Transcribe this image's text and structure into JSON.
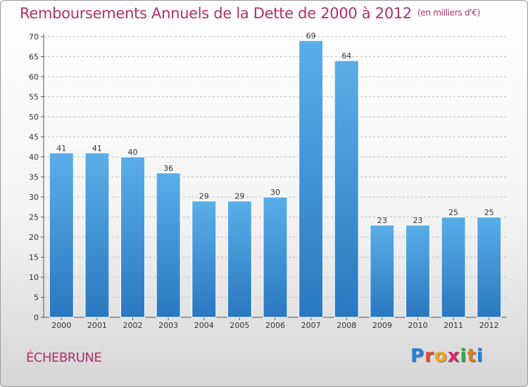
{
  "header": {
    "title": "Remboursements Annuels de la Dette de 2000 à 2012",
    "unit": "(en milliers d'€)"
  },
  "footer": {
    "commune": "ÉCHEBRUNE",
    "brand_letters": [
      "P",
      "r",
      "o",
      "x",
      "i",
      "t",
      "i"
    ],
    "brand_colors": [
      "#2a7fd4",
      "#e04a2a",
      "#f2a51a",
      "#d42a6a",
      "#2aa84a",
      "#e07a1a",
      "#2a7fd4"
    ]
  },
  "chart_data": {
    "type": "bar",
    "categories": [
      "2000",
      "2001",
      "2002",
      "2003",
      "2004",
      "2005",
      "2006",
      "2007",
      "2008",
      "2009",
      "2010",
      "2011",
      "2012"
    ],
    "values": [
      41,
      41,
      40,
      36,
      29,
      29,
      30,
      69,
      64,
      23,
      23,
      25,
      25
    ],
    "ylim": [
      0,
      70
    ],
    "yticks": [
      0,
      5,
      10,
      15,
      20,
      25,
      30,
      35,
      40,
      45,
      50,
      55,
      60,
      65,
      70
    ],
    "grid": true,
    "bar_color_top": "#5aaee8",
    "bar_color_bottom": "#2a78c0"
  }
}
